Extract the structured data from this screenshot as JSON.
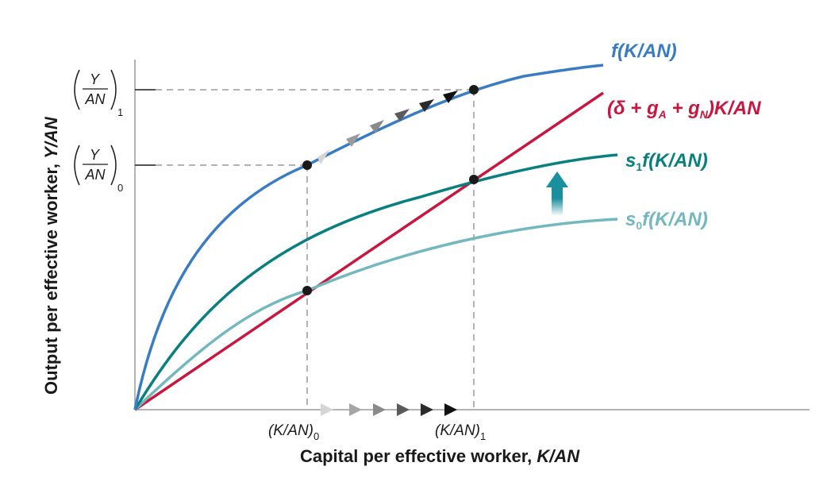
{
  "axes": {
    "x_title_prefix": "Capital per effective worker, ",
    "x_title_var": "K/AN",
    "y_title_prefix": "Output per effective worker, ",
    "y_title_var": "Y/AN"
  },
  "x_ticks": [
    {
      "text": "(K/AN)",
      "sub": "0"
    },
    {
      "text": "(K/AN)",
      "sub": "1"
    }
  ],
  "y_ticks": [
    {
      "num": "Y",
      "den": "AN",
      "sub": "1"
    },
    {
      "num": "Y",
      "den": "AN",
      "sub": "0"
    }
  ],
  "curves": {
    "production": {
      "label": "f(K/AN)",
      "color": "#3a7cc4"
    },
    "breakeven": {
      "label_pre": "(δ + g",
      "sub_a": "A",
      "label_mid": " + g",
      "sub_n": "N",
      "label_post": ")K/AN",
      "color": "#c8163f"
    },
    "saving1": {
      "label_s": "s",
      "sub": "1",
      "label_rest": "f(K/AN)",
      "color": "#0a7f7f"
    },
    "saving0": {
      "label_s": "s",
      "sub": "0",
      "label_rest": "f(K/AN)",
      "color": "#73b7bf"
    }
  },
  "colors": {
    "axis": "#9a9a9a",
    "guide": "#9a9a9a",
    "point": "#1a1a1a",
    "arrow_up": "#1a8f9e"
  }
}
